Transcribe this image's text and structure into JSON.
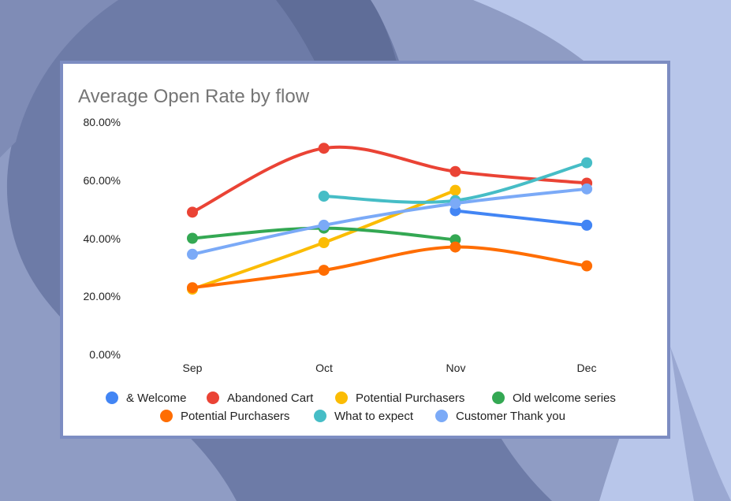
{
  "chart_data": {
    "type": "line",
    "title": "Average Open Rate by flow",
    "xlabel": "",
    "ylabel": "",
    "categories": [
      "Sep",
      "Oct",
      "Nov",
      "Dec"
    ],
    "ylim": [
      0,
      80
    ],
    "yticks": [
      "0.00%",
      "20.00%",
      "40.00%",
      "60.00%",
      "80.00%"
    ],
    "grid": false,
    "legend_position": "bottom",
    "series": [
      {
        "name": "& Welcome",
        "color": "#4285f4",
        "values": [
          null,
          null,
          49.5,
          44.5
        ]
      },
      {
        "name": "Abandoned Cart",
        "color": "#ea4335",
        "values": [
          49,
          71,
          63,
          59
        ]
      },
      {
        "name": "Potential Purchasers",
        "color": "#fbbc04",
        "values": [
          22.5,
          38.5,
          56.5,
          null
        ]
      },
      {
        "name": "Old welcome series",
        "color": "#34a853",
        "values": [
          40,
          43.5,
          39.5,
          null
        ]
      },
      {
        "name": "Potential Purchasers",
        "color": "#ff6d01",
        "values": [
          23,
          29,
          37,
          30.5
        ]
      },
      {
        "name": "What to expect",
        "color": "#46bdc6",
        "values": [
          null,
          54.5,
          53,
          66
        ]
      },
      {
        "name": "Customer Thank you",
        "color": "#7baaf7",
        "values": [
          34.5,
          44.5,
          52,
          57
        ]
      }
    ]
  }
}
